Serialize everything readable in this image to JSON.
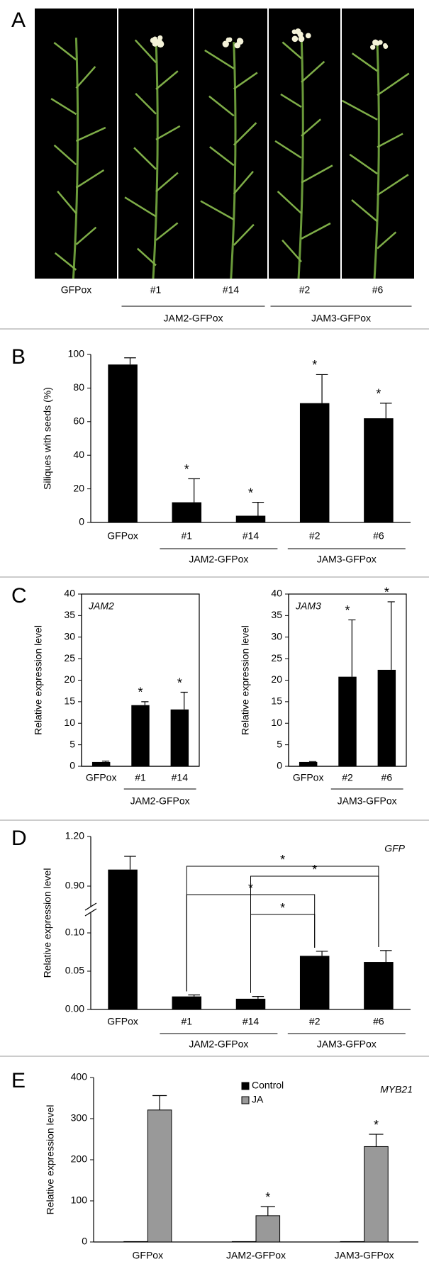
{
  "photo_panel": {
    "letter": "A",
    "labels": [
      "GFPox",
      "#1",
      "#14",
      "#2",
      "#6"
    ],
    "groups": [
      {
        "label": "JAM2-GFPox",
        "members": [
          "#1",
          "#14"
        ]
      },
      {
        "label": "JAM3-GFPox",
        "members": [
          "#2",
          "#6"
        ]
      }
    ]
  },
  "chart_data": [
    {
      "type": "bar",
      "panel": "B",
      "y_label": "Siliques with seeds (%)",
      "categories": [
        "GFPox",
        "#1",
        "#14",
        "#2",
        "#6"
      ],
      "values": [
        94,
        12,
        4,
        71,
        62
      ],
      "errors": [
        4,
        14,
        8,
        17,
        9
      ],
      "markers": [
        null,
        "*",
        "*",
        "*",
        "*"
      ],
      "color": "#000000",
      "ylim": [
        0,
        100
      ],
      "yticks": [
        0,
        20,
        40,
        60,
        80,
        100
      ],
      "groups": [
        {
          "label": "JAM2-GFPox",
          "members": [
            "#1",
            "#14"
          ]
        },
        {
          "label": "JAM3-GFPox",
          "members": [
            "#2",
            "#6"
          ]
        }
      ]
    },
    {
      "type": "bar",
      "panel": "C",
      "gene": "JAM2",
      "y_label": "Relative expression level",
      "frame": true,
      "categories": [
        "GFPox",
        "#1",
        "#14"
      ],
      "values": [
        1.0,
        14.2,
        13.2
      ],
      "errors": [
        0.2,
        0.8,
        4.0
      ],
      "markers": [
        null,
        "*",
        "*"
      ],
      "color": "#000000",
      "ylim": [
        0,
        40
      ],
      "yticks": [
        0,
        5,
        10,
        15,
        20,
        25,
        30,
        35,
        40
      ],
      "groups": [
        {
          "label": "JAM2-GFPox",
          "members": [
            "#1",
            "#14"
          ]
        }
      ]
    },
    {
      "type": "bar",
      "gene": "JAM3",
      "y_label": "Relative expression level",
      "frame": true,
      "categories": [
        "GFPox",
        "#2",
        "#6"
      ],
      "values": [
        1.0,
        20.8,
        22.4
      ],
      "errors": [
        0.1,
        13.2,
        15.8
      ],
      "markers": [
        null,
        "*",
        "*"
      ],
      "color": "#000000",
      "ylim": [
        0,
        40
      ],
      "yticks": [
        0,
        5,
        10,
        15,
        20,
        25,
        30,
        35,
        40
      ],
      "groups": [
        {
          "label": "JAM3-GFPox",
          "members": [
            "#2",
            "#6"
          ]
        }
      ]
    },
    {
      "type": "bar",
      "panel": "D",
      "gene": "GFP",
      "y_label": "Relative expression level",
      "categories": [
        "GFPox",
        "#1",
        "#14",
        "#2",
        "#6"
      ],
      "values": [
        1.0,
        0.017,
        0.014,
        0.07,
        0.062
      ],
      "errors": [
        0.08,
        0.002,
        0.003,
        0.006,
        0.015
      ],
      "color": "#000000",
      "ylim": [
        0,
        1.2
      ],
      "y_break": [
        0.1,
        0.9
      ],
      "yticks": [
        {
          "value": 0,
          "label": "0.00"
        },
        {
          "value": 0.05,
          "label": "0.05"
        },
        {
          "value": 0.1,
          "label": "0.10"
        },
        {
          "value": 0.9,
          "label": "0.90"
        },
        {
          "value": 1.2,
          "label": "1.20"
        }
      ],
      "comparisons": [
        {
          "from": "#1",
          "to": "#6",
          "label": "*"
        },
        {
          "from": "#14",
          "to": "#6",
          "label": "*"
        },
        {
          "from": "#1",
          "to": "#2",
          "label": "*"
        },
        {
          "from": "#14",
          "to": "#2",
          "label": "*"
        }
      ],
      "groups": [
        {
          "label": "JAM2-GFPox",
          "members": [
            "#1",
            "#14"
          ]
        },
        {
          "label": "JAM3-GFPox",
          "members": [
            "#2",
            "#6"
          ]
        }
      ]
    },
    {
      "type": "grouped_bar",
      "panel": "E",
      "gene": "MYB21",
      "y_label": "Relative expression level",
      "categories": [
        "GFPox",
        "JAM2-GFPox",
        "JAM3-GFPox"
      ],
      "series": [
        {
          "name": "Control",
          "color": "#000000",
          "values": [
            1,
            1,
            1
          ]
        },
        {
          "name": "JA",
          "color": "#999999",
          "values": [
            321,
            64,
            232
          ],
          "errors": [
            35,
            22,
            30
          ],
          "markers": [
            null,
            "*",
            "*"
          ]
        }
      ],
      "ylim": [
        0,
        400
      ],
      "yticks": [
        0,
        100,
        200,
        300,
        400
      ],
      "legend": "top"
    }
  ]
}
